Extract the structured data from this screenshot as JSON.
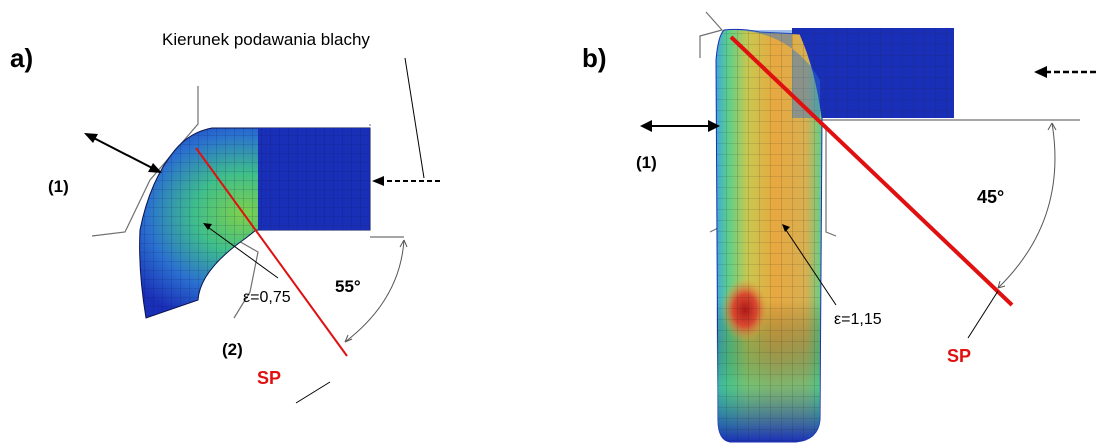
{
  "panel_a": {
    "letter": "a)",
    "feed_direction": "Kierunek podawania blachy",
    "label_1": "(1)",
    "label_2": "(2)",
    "strain": "ε=0,75",
    "angle": "55°",
    "plane": "SP"
  },
  "panel_b": {
    "letter": "b)",
    "label_1": "(1)",
    "strain": "ε=1,15",
    "angle": "45°",
    "plane": "SP"
  },
  "colors": {
    "mesh_low": "#1a2fb8",
    "mesh_mid": "#3fbf5a",
    "mesh_high": "#e8b040",
    "mesh_peak": "#c0302a",
    "plane_line": "#e01010"
  }
}
